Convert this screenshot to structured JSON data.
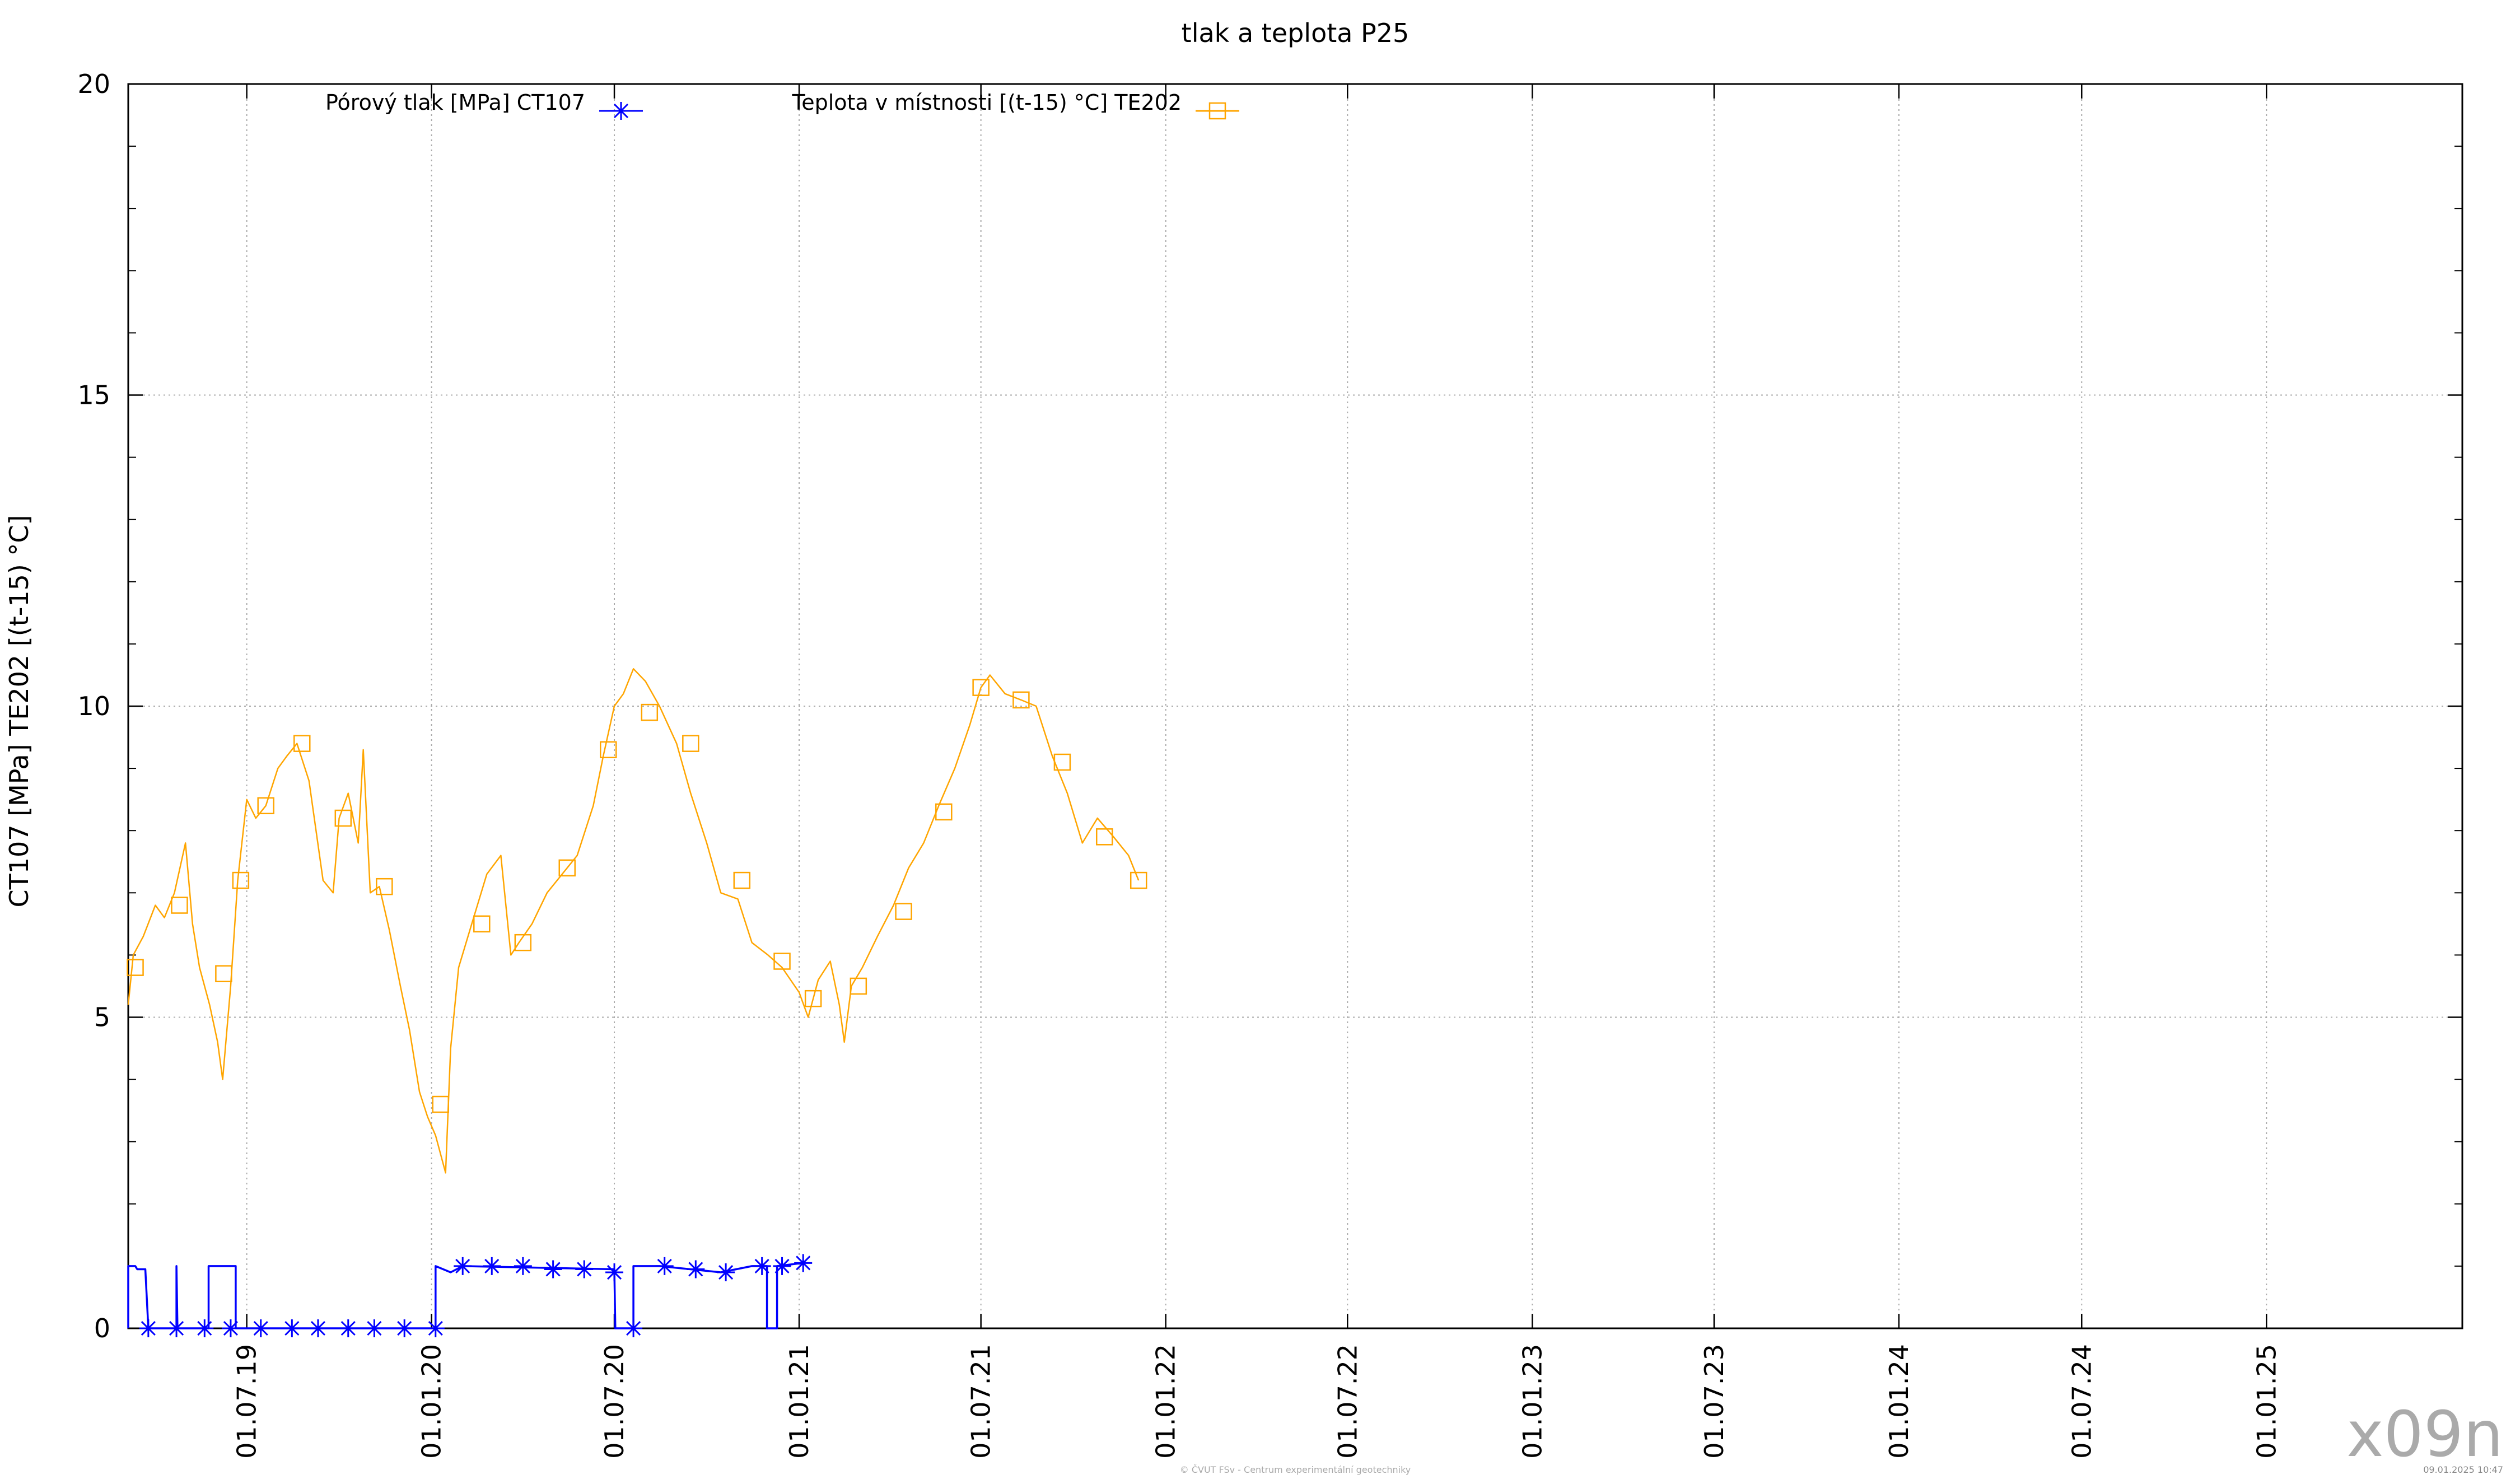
{
  "chart_data": {
    "type": "line",
    "title": "tlak a teplota P25",
    "ylabel": "CT107 [MPa] TE202 [(t-15) °C]",
    "xlabel": "",
    "ylim": [
      0,
      20
    ],
    "yticks": [
      0,
      5,
      10,
      15,
      20
    ],
    "xlim": [
      "2019-03-05",
      "2025-07-15"
    ],
    "xticks": [
      "2019-07-01",
      "2020-01-01",
      "2020-07-01",
      "2021-01-01",
      "2021-07-01",
      "2022-01-01",
      "2022-07-01",
      "2023-01-01",
      "2023-07-01",
      "2024-01-01",
      "2024-07-01",
      "2025-01-01"
    ],
    "xtick_labels": [
      "01.07.19",
      "01.01.20",
      "01.07.20",
      "01.01.21",
      "01.07.21",
      "01.01.22",
      "01.07.22",
      "01.01.23",
      "01.07.23",
      "01.01.24",
      "01.07.24",
      "01.01.25"
    ],
    "grid": true,
    "legend_position": "top",
    "series": [
      {
        "name": "Pórový tlak [MPa] CT107",
        "color": "#0000ff",
        "marker": "star",
        "step": true,
        "points": [
          [
            "2019-03-05",
            0.0
          ],
          [
            "2019-03-05",
            1.0
          ],
          [
            "2019-03-12",
            1.0
          ],
          [
            "2019-03-14",
            0.95
          ],
          [
            "2019-03-22",
            0.95
          ],
          [
            "2019-03-25",
            0.0
          ],
          [
            "2019-04-22",
            0.0
          ],
          [
            "2019-04-22",
            1.0
          ],
          [
            "2019-04-23",
            0.0
          ],
          [
            "2019-05-24",
            0.0
          ],
          [
            "2019-05-24",
            1.0
          ],
          [
            "2019-06-20",
            1.0
          ],
          [
            "2019-06-20",
            0.0
          ],
          [
            "2020-01-05",
            0.0
          ],
          [
            "2020-01-05",
            1.0
          ],
          [
            "2020-01-20",
            0.9
          ],
          [
            "2020-02-01",
            1.0
          ],
          [
            "2020-07-01",
            0.95
          ],
          [
            "2020-07-02",
            0.0
          ],
          [
            "2020-07-20",
            0.0
          ],
          [
            "2020-07-20",
            1.0
          ],
          [
            "2020-08-15",
            1.0
          ],
          [
            "2020-10-15",
            0.9
          ],
          [
            "2020-11-15",
            1.0
          ],
          [
            "2020-11-30",
            1.0
          ],
          [
            "2020-11-30",
            0.0
          ],
          [
            "2020-12-10",
            0.0
          ],
          [
            "2020-12-10",
            1.0
          ],
          [
            "2021-01-05",
            1.05
          ]
        ],
        "markers": [
          [
            "2019-03-25",
            0.0
          ],
          [
            "2019-04-22",
            0.0
          ],
          [
            "2019-05-20",
            0.0
          ],
          [
            "2019-06-15",
            0.0
          ],
          [
            "2019-07-15",
            0.0
          ],
          [
            "2019-08-15",
            0.0
          ],
          [
            "2019-09-10",
            0.0
          ],
          [
            "2019-10-10",
            0.0
          ],
          [
            "2019-11-05",
            0.0
          ],
          [
            "2019-12-05",
            0.0
          ],
          [
            "2020-01-05",
            0.0
          ],
          [
            "2020-02-01",
            1.0
          ],
          [
            "2020-03-01",
            1.0
          ],
          [
            "2020-04-01",
            1.0
          ],
          [
            "2020-05-01",
            0.95
          ],
          [
            "2020-06-01",
            0.95
          ],
          [
            "2020-07-01",
            0.9
          ],
          [
            "2020-07-20",
            0.0
          ],
          [
            "2020-08-20",
            1.0
          ],
          [
            "2020-09-20",
            0.95
          ],
          [
            "2020-10-20",
            0.9
          ],
          [
            "2020-11-25",
            1.0
          ],
          [
            "2020-12-15",
            1.0
          ],
          [
            "2021-01-05",
            1.05
          ]
        ]
      },
      {
        "name": "Teplota v místnosti [(t-15) °C] TE202",
        "color": "#ffa500",
        "marker": "square",
        "step": false,
        "points": [
          [
            "2019-03-05",
            5.2
          ],
          [
            "2019-03-10",
            6.0
          ],
          [
            "2019-03-20",
            6.3
          ],
          [
            "2019-04-01",
            6.8
          ],
          [
            "2019-04-10",
            6.6
          ],
          [
            "2019-04-20",
            7.0
          ],
          [
            "2019-05-01",
            7.8
          ],
          [
            "2019-05-08",
            6.5
          ],
          [
            "2019-05-15",
            5.8
          ],
          [
            "2019-05-25",
            5.2
          ],
          [
            "2019-06-02",
            4.6
          ],
          [
            "2019-06-07",
            4.0
          ],
          [
            "2019-06-15",
            5.5
          ],
          [
            "2019-06-22",
            7.2
          ],
          [
            "2019-07-01",
            8.5
          ],
          [
            "2019-07-10",
            8.2
          ],
          [
            "2019-07-20",
            8.4
          ],
          [
            "2019-08-01",
            9.0
          ],
          [
            "2019-08-10",
            9.2
          ],
          [
            "2019-08-20",
            9.4
          ],
          [
            "2019-09-01",
            8.8
          ],
          [
            "2019-09-15",
            7.2
          ],
          [
            "2019-09-25",
            7.0
          ],
          [
            "2019-10-01",
            8.2
          ],
          [
            "2019-10-10",
            8.6
          ],
          [
            "2019-10-20",
            7.8
          ],
          [
            "2019-10-25",
            9.3
          ],
          [
            "2019-11-01",
            7.0
          ],
          [
            "2019-11-10",
            7.1
          ],
          [
            "2019-11-20",
            6.4
          ],
          [
            "2019-12-01",
            5.5
          ],
          [
            "2019-12-10",
            4.8
          ],
          [
            "2019-12-20",
            3.8
          ],
          [
            "2019-12-28",
            3.4
          ],
          [
            "2020-01-05",
            3.1
          ],
          [
            "2020-01-15",
            2.5
          ],
          [
            "2020-01-20",
            4.5
          ],
          [
            "2020-01-28",
            5.8
          ],
          [
            "2020-02-10",
            6.5
          ],
          [
            "2020-02-25",
            7.3
          ],
          [
            "2020-03-10",
            7.6
          ],
          [
            "2020-03-20",
            6.0
          ],
          [
            "2020-03-28",
            6.2
          ],
          [
            "2020-04-10",
            6.5
          ],
          [
            "2020-04-25",
            7.0
          ],
          [
            "2020-05-10",
            7.3
          ],
          [
            "2020-05-25",
            7.6
          ],
          [
            "2020-06-10",
            8.4
          ],
          [
            "2020-06-20",
            9.2
          ],
          [
            "2020-07-01",
            10.0
          ],
          [
            "2020-07-10",
            10.2
          ],
          [
            "2020-07-20",
            10.6
          ],
          [
            "2020-08-01",
            10.4
          ],
          [
            "2020-08-15",
            10.0
          ],
          [
            "2020-09-01",
            9.4
          ],
          [
            "2020-09-15",
            8.6
          ],
          [
            "2020-10-01",
            7.8
          ],
          [
            "2020-10-15",
            7.0
          ],
          [
            "2020-11-01",
            6.9
          ],
          [
            "2020-11-15",
            6.2
          ],
          [
            "2020-12-01",
            6.0
          ],
          [
            "2020-12-15",
            5.8
          ],
          [
            "2021-01-01",
            5.4
          ],
          [
            "2021-01-10",
            5.0
          ],
          [
            "2021-01-20",
            5.6
          ],
          [
            "2021-02-01",
            5.9
          ],
          [
            "2021-02-10",
            5.2
          ],
          [
            "2021-02-15",
            4.6
          ],
          [
            "2021-02-22",
            5.5
          ],
          [
            "2021-03-05",
            5.8
          ],
          [
            "2021-03-20",
            6.3
          ],
          [
            "2021-04-05",
            6.8
          ],
          [
            "2021-04-20",
            7.4
          ],
          [
            "2021-05-05",
            7.8
          ],
          [
            "2021-05-20",
            8.4
          ],
          [
            "2021-06-05",
            9.0
          ],
          [
            "2021-06-20",
            9.7
          ],
          [
            "2021-07-01",
            10.3
          ],
          [
            "2021-07-10",
            10.5
          ],
          [
            "2021-07-25",
            10.2
          ],
          [
            "2021-08-10",
            10.1
          ],
          [
            "2021-08-25",
            10.0
          ],
          [
            "2021-09-10",
            9.2
          ],
          [
            "2021-09-25",
            8.6
          ],
          [
            "2021-10-10",
            7.8
          ],
          [
            "2021-10-25",
            8.2
          ],
          [
            "2021-11-10",
            7.9
          ],
          [
            "2021-11-25",
            7.6
          ],
          [
            "2021-12-05",
            7.2
          ]
        ],
        "markers": [
          [
            "2019-03-12",
            5.8
          ],
          [
            "2019-04-25",
            6.8
          ],
          [
            "2019-06-08",
            5.7
          ],
          [
            "2019-06-25",
            7.2
          ],
          [
            "2019-07-20",
            8.4
          ],
          [
            "2019-08-25",
            9.4
          ],
          [
            "2019-10-05",
            8.2
          ],
          [
            "2019-11-15",
            7.1
          ],
          [
            "2020-01-10",
            3.6
          ],
          [
            "2020-02-20",
            6.5
          ],
          [
            "2020-04-01",
            6.2
          ],
          [
            "2020-05-15",
            7.4
          ],
          [
            "2020-06-25",
            9.3
          ],
          [
            "2020-08-05",
            9.9
          ],
          [
            "2020-09-15",
            9.4
          ],
          [
            "2020-11-05",
            7.2
          ],
          [
            "2020-12-15",
            5.9
          ],
          [
            "2021-01-15",
            5.3
          ],
          [
            "2021-03-01",
            5.5
          ],
          [
            "2021-04-15",
            6.7
          ],
          [
            "2021-05-25",
            8.3
          ],
          [
            "2021-07-01",
            10.3
          ],
          [
            "2021-08-10",
            10.1
          ],
          [
            "2021-09-20",
            9.1
          ],
          [
            "2021-11-01",
            7.9
          ],
          [
            "2021-12-05",
            7.2
          ]
        ]
      }
    ]
  },
  "footer": {
    "logo_text": "x09n",
    "copyright": "© ČVUT FSv - Centrum experimentální geotechniky",
    "timestamp": "09.01.2025 10:47"
  }
}
